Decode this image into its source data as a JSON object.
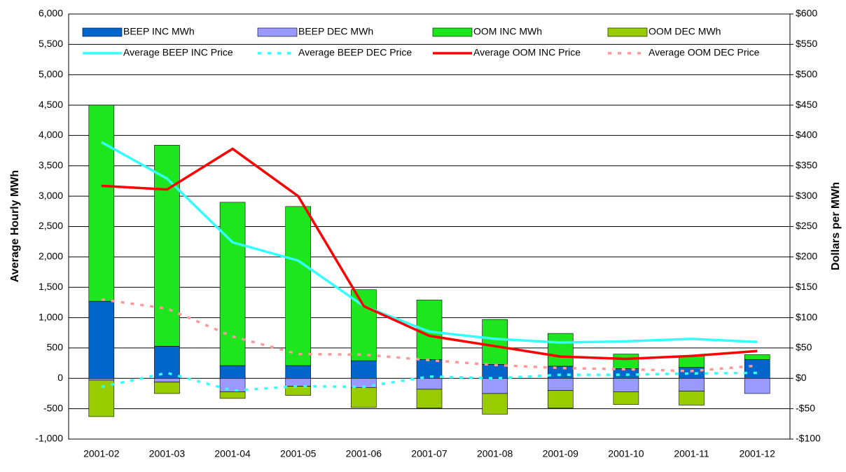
{
  "chart_data": {
    "type": "combo",
    "y_label": "Average Hourly MWh",
    "y2_label": "Dollars per MWh",
    "categories": [
      "2001-02",
      "2001-03",
      "2001-04",
      "2001-05",
      "2001-06",
      "2001-07",
      "2001-08",
      "2001-09",
      "2001-10",
      "2001-11",
      "2001-12"
    ],
    "ylim": [
      -1000,
      6000
    ],
    "yticks": [
      {
        "value": -1000,
        "label": "-1,000"
      },
      -500,
      0,
      500,
      {
        "value": 1000,
        "label": "1,000"
      },
      {
        "value": 1500,
        "label": "1,500"
      },
      {
        "value": 2000,
        "label": "2,000"
      },
      {
        "value": 2500,
        "label": "2,500"
      },
      {
        "value": 3000,
        "label": "3,000"
      },
      {
        "value": 3500,
        "label": "3,500"
      },
      {
        "value": 4000,
        "label": "4,000"
      },
      {
        "value": 4500,
        "label": "4,500"
      },
      {
        "value": 5000,
        "label": "5,000"
      },
      {
        "value": 5500,
        "label": "5,500"
      },
      {
        "value": 6000,
        "label": "6,000"
      }
    ],
    "y2lim": [
      -100,
      600
    ],
    "y2ticks": [
      {
        "value": -100,
        "label": "-$100"
      },
      {
        "value": -50,
        "label": "-$50"
      },
      {
        "value": 0,
        "label": "$0"
      },
      {
        "value": 50,
        "label": "$50"
      },
      {
        "value": 100,
        "label": "$100"
      },
      {
        "value": 150,
        "label": "$150"
      },
      {
        "value": 200,
        "label": "$200"
      },
      {
        "value": 250,
        "label": "$250"
      },
      {
        "value": 300,
        "label": "$300"
      },
      {
        "value": 350,
        "label": "$350"
      },
      {
        "value": 400,
        "label": "$400"
      },
      {
        "value": 450,
        "label": "$450"
      },
      {
        "value": 500,
        "label": "$500"
      },
      {
        "value": 550,
        "label": "$550"
      },
      {
        "value": 600,
        "label": "$600"
      }
    ],
    "grid": true,
    "series": [
      {
        "name": "BEEP INC MWh",
        "type": "bar",
        "color": "#0066cc",
        "values": [
          1270,
          530,
          210,
          210,
          290,
          310,
          230,
          200,
          160,
          180,
          310
        ]
      },
      {
        "name": "BEEP DEC MWh",
        "type": "bar",
        "color": "#9999ff",
        "values": [
          -30,
          -60,
          -220,
          -130,
          -150,
          -180,
          -250,
          -200,
          -220,
          -210,
          -250
        ]
      },
      {
        "name": "OOM INC MWh",
        "type": "bar",
        "color": "#1ee61e",
        "values": [
          3230,
          3310,
          2690,
          2620,
          1170,
          980,
          740,
          540,
          240,
          190,
          80
        ]
      },
      {
        "name": "OOM DEC MWh",
        "type": "bar",
        "color": "#99cc00",
        "values": [
          -600,
          -190,
          -110,
          -150,
          -330,
          -310,
          -340,
          -290,
          -210,
          -230,
          0
        ]
      },
      {
        "name": "Average BEEP INC Price",
        "type": "line",
        "axis": "y2",
        "color": "#33ffff",
        "dashed": false,
        "values": [
          389,
          329,
          224,
          194,
          119,
          77,
          65,
          59,
          61,
          65,
          60
        ]
      },
      {
        "name": "Average BEEP DEC Price",
        "type": "line",
        "axis": "y2",
        "color": "#33ffff",
        "dashed": true,
        "values": [
          -14,
          9,
          -20,
          -13,
          -14,
          3,
          0,
          6,
          6,
          8,
          9
        ]
      },
      {
        "name": "Average OOM INC Price",
        "type": "line",
        "axis": "y2",
        "color": "#ff0000",
        "dashed": false,
        "values": [
          317,
          311,
          378,
          300,
          119,
          70,
          53,
          36,
          32,
          37,
          45
        ]
      },
      {
        "name": "Average OOM DEC Price",
        "type": "line",
        "axis": "y2",
        "color": "#ff9999",
        "dashed": true,
        "values": [
          130,
          115,
          69,
          40,
          39,
          30,
          22,
          17,
          15,
          12,
          21
        ]
      }
    ]
  }
}
